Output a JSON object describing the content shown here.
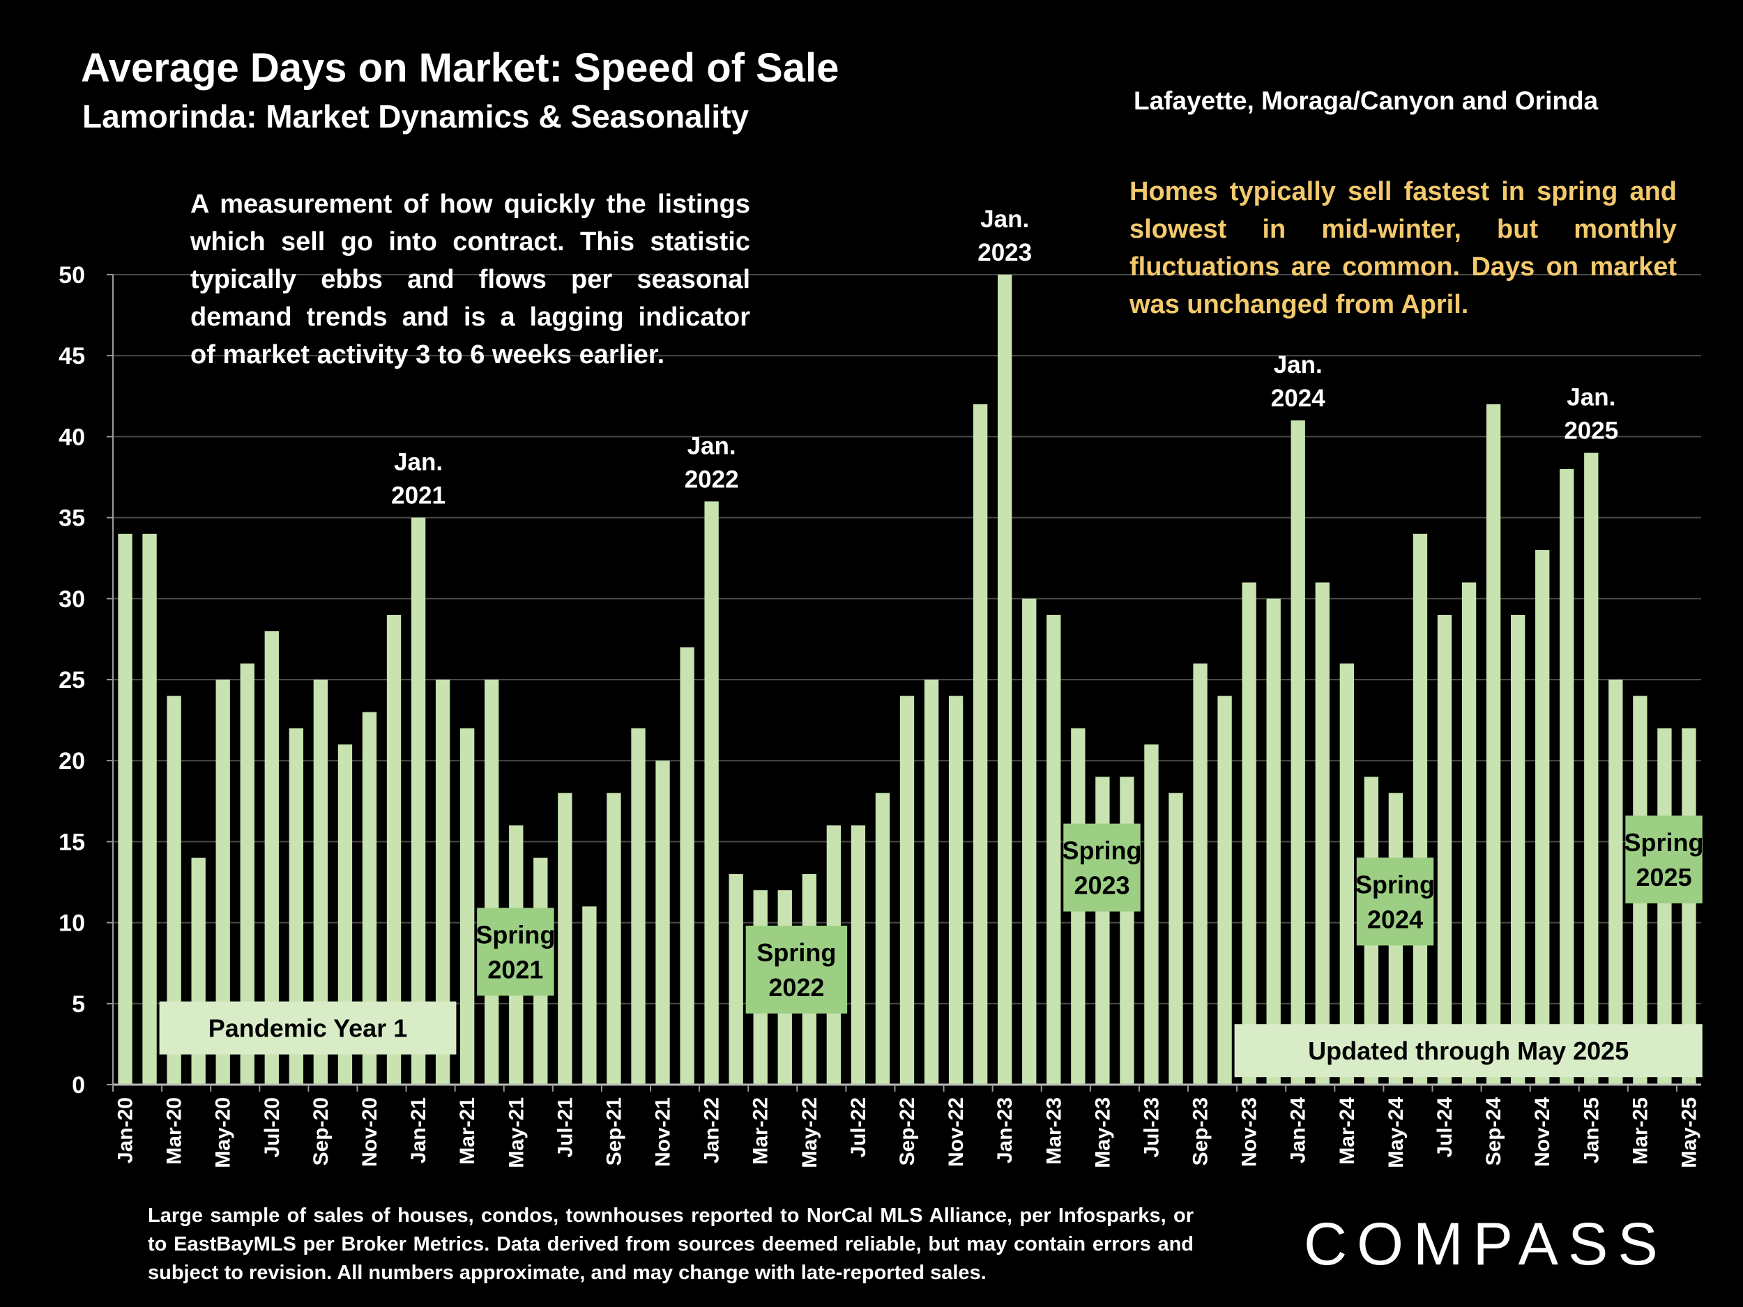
{
  "title": "Average Days on Market:  Speed of Sale",
  "subtitle": "Lamorinda: Market Dynamics & Seasonality",
  "region_label": "Lafayette, Moraga/Canyon and Orinda",
  "description": "A measurement of how quickly the listings which sell go into contract. This statistic typically ebbs and flows per seasonal demand trends and is a lagging indicator of market activity 3 to 6 weeks earlier.",
  "description_lines": [
    "A measurement of how quickly the listings",
    "which sell go into contract. This statistic",
    "typically ebbs and flows per seasonal",
    "demand trends and is a lagging indicator",
    "of market activity 3 to 6 weeks earlier."
  ],
  "note": "Homes typically sell fastest in spring and slowest in mid-winter, but monthly fluctuations are common. Days on market was unchanged from April.",
  "footnote": "Large sample of sales of houses, condos, townhouses reported to NorCal MLS Alliance, per Infosparks, or to EastBayMLS per Broker Metrics. Data derived from sources deemed reliable, but may contain errors and subject to revision. All numbers approximate, and may change with late-reported sales.",
  "logo_text": "COMPASS",
  "colors": {
    "bar": "#c8e3b0",
    "label_box": "#9ccf83",
    "wide_box": "#d8ecc8",
    "note_text": "#f3c96c",
    "grid": "#4a4a4a",
    "background": "#000000"
  },
  "chart_data": {
    "type": "bar",
    "categories": [
      "Jan-20",
      "Feb-20",
      "Mar-20",
      "Apr-20",
      "May-20",
      "Jun-20",
      "Jul-20",
      "Aug-20",
      "Sep-20",
      "Oct-20",
      "Nov-20",
      "Dec-20",
      "Jan-21",
      "Feb-21",
      "Mar-21",
      "Apr-21",
      "May-21",
      "Jun-21",
      "Jul-21",
      "Aug-21",
      "Sep-21",
      "Oct-21",
      "Nov-21",
      "Dec-21",
      "Jan-22",
      "Feb-22",
      "Mar-22",
      "Apr-22",
      "May-22",
      "Jun-22",
      "Jul-22",
      "Aug-22",
      "Sep-22",
      "Oct-22",
      "Nov-22",
      "Dec-22",
      "Jan-23",
      "Feb-23",
      "Mar-23",
      "Apr-23",
      "May-23",
      "Jun-23",
      "Jul-23",
      "Aug-23",
      "Sep-23",
      "Oct-23",
      "Nov-23",
      "Dec-23",
      "Jan-24",
      "Feb-24",
      "Mar-24",
      "Apr-24",
      "May-24",
      "Jun-24",
      "Jul-24",
      "Aug-24",
      "Sep-24",
      "Oct-24",
      "Nov-24",
      "Dec-24",
      "Jan-25",
      "Feb-25",
      "Mar-25",
      "Apr-25",
      "May-25"
    ],
    "values": [
      34,
      34,
      24,
      14,
      25,
      26,
      28,
      22,
      25,
      21,
      23,
      29,
      35,
      25,
      22,
      25,
      16,
      14,
      18,
      11,
      18,
      22,
      20,
      27,
      36,
      13,
      12,
      12,
      13,
      16,
      16,
      18,
      24,
      25,
      24,
      42,
      50,
      30,
      29,
      22,
      19,
      19,
      21,
      18,
      26,
      24,
      31,
      30,
      41,
      31,
      26,
      19,
      18,
      34,
      29,
      31,
      42,
      29,
      33,
      38,
      39,
      25,
      24,
      22,
      22
    ],
    "tick_labels": [
      "Jan-20",
      "Mar-20",
      "May-20",
      "Jul-20",
      "Sep-20",
      "Nov-20",
      "Jan-21",
      "Mar-21",
      "May-21",
      "Jul-21",
      "Sep-21",
      "Nov-21",
      "Jan-22",
      "Mar-22",
      "May-22",
      "Jul-22",
      "Sep-22",
      "Nov-22",
      "Jan-23",
      "Mar-23",
      "May-23",
      "Jul-23",
      "Sep-23",
      "Nov-23",
      "Jan-24",
      "Mar-24",
      "May-24",
      "Jul-24",
      "Sep-24",
      "Nov-24",
      "Jan-25",
      "Mar-25",
      "May-25"
    ],
    "yticks": [
      0,
      5,
      10,
      15,
      20,
      25,
      30,
      35,
      40,
      45,
      50
    ],
    "ylim": [
      0,
      50
    ],
    "grid": true,
    "annotations": [
      {
        "text": "Jan.\n2021",
        "month": "Jan-21"
      },
      {
        "text": "Jan.\n2022",
        "month": "Jan-22"
      },
      {
        "text": "Jan.\n2023",
        "month": "Jan-23"
      },
      {
        "text": "Jan.\n2024",
        "month": "Jan-24"
      },
      {
        "text": "Jan.\n2025",
        "month": "Jan-25"
      }
    ],
    "boxes": [
      {
        "text": "Pandemic Year 1",
        "from": "Mar-20",
        "to": "Feb-21",
        "level": 3.5,
        "style": "wide"
      },
      {
        "text": "Spring\n2021",
        "from": "Apr-21",
        "to": "Jun-21",
        "level": 8.2,
        "style": "box"
      },
      {
        "text": "Spring\n2022",
        "from": "Mar-22",
        "to": "Jun-22",
        "level": 7.1,
        "style": "box"
      },
      {
        "text": "Spring\n2023",
        "from": "Apr-23",
        "to": "Jun-23",
        "level": 13.4,
        "style": "box"
      },
      {
        "text": "Spring\n2024",
        "from": "Apr-24",
        "to": "Jun-24",
        "level": 11.3,
        "style": "box"
      },
      {
        "text": "Spring\n2025",
        "from": "Mar-25",
        "to": "May-25",
        "level": 13.9,
        "style": "box"
      },
      {
        "text": "Updated through May 2025",
        "from": "Nov-23",
        "to": "May-25",
        "level": 2.1,
        "style": "wide"
      }
    ]
  }
}
